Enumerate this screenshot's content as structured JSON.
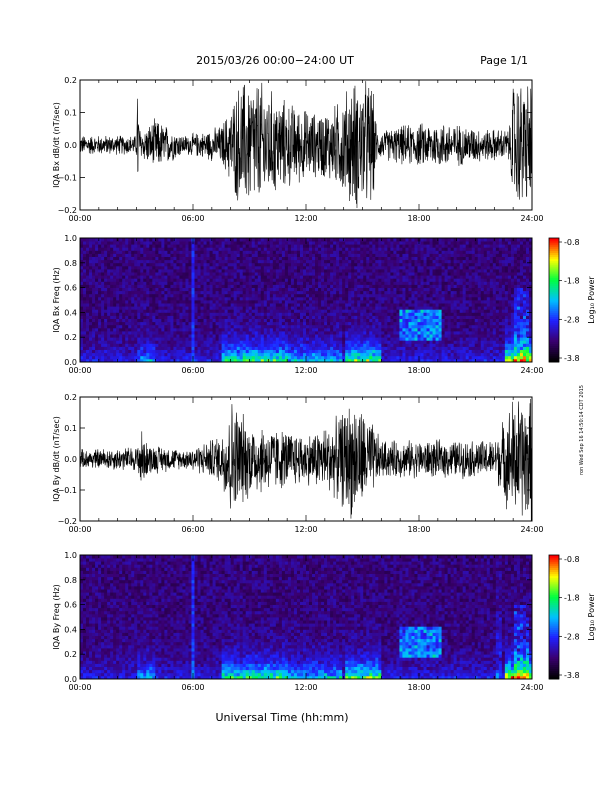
{
  "header": {
    "title": "2015/03/26  00:00−24:00 UT",
    "page": "Page 1/1"
  },
  "xaxis": {
    "label": "Universal Time (hh:mm)",
    "ticks": [
      "00:00",
      "06:00",
      "12:00",
      "18:00",
      "24:00"
    ],
    "range": [
      0,
      24
    ]
  },
  "side_stamp": "ron Wed Sep 16 14:50:14 CDT 2015",
  "colorbar": {
    "ticks": [
      "-0.8",
      "-1.8",
      "-2.8",
      "-3.8"
    ],
    "label": "Log₁₀ Power",
    "range": [
      -3.8,
      -0.8
    ]
  },
  "chart_data": [
    {
      "type": "line",
      "ylabel": "IQA Bx dB/dt (nT/sec)",
      "ylim": [
        -0.2,
        0.2
      ],
      "yticks": [
        "0.2",
        "0.1",
        "0.0",
        "−0.1",
        "−0.2"
      ],
      "series": [
        {
          "color": "#000000",
          "envelope": [
            [
              0,
              0.03
            ],
            [
              3.0,
              0.03
            ],
            [
              3.05,
              0.2
            ],
            [
              3.2,
              0.04
            ],
            [
              4.0,
              0.08
            ],
            [
              5.5,
              0.03
            ],
            [
              6.5,
              0.04
            ],
            [
              7.5,
              0.06
            ],
            [
              8.0,
              0.12
            ],
            [
              8.5,
              0.2
            ],
            [
              9.5,
              0.2
            ],
            [
              10.5,
              0.15
            ],
            [
              11.5,
              0.12
            ],
            [
              12.5,
              0.1
            ],
            [
              13.5,
              0.12
            ],
            [
              14.5,
              0.2
            ],
            [
              15.5,
              0.2
            ],
            [
              15.8,
              0.04
            ],
            [
              17.0,
              0.06
            ],
            [
              18.5,
              0.07
            ],
            [
              19.5,
              0.07
            ],
            [
              21.5,
              0.05
            ],
            [
              22.8,
              0.05
            ],
            [
              23.0,
              0.2
            ],
            [
              24.0,
              0.2
            ]
          ]
        }
      ]
    },
    {
      "type": "heatmap",
      "ylabel": "IQA Bx Freq (Hz)",
      "ylim": [
        0.0,
        1.0
      ],
      "yticks": [
        "1.0",
        "0.8",
        "0.6",
        "0.4",
        "0.2",
        "0.0"
      ],
      "colorscale": [
        "#000000",
        "#3a0070",
        "#2020ff",
        "#00c0ff",
        "#00ff40",
        "#ffff00",
        "#ff0000"
      ]
    },
    {
      "type": "line",
      "ylabel": "IQA By dB/dt (nT/sec)",
      "ylim": [
        -0.2,
        0.2
      ],
      "yticks": [
        "0.2",
        "0.1",
        "0.0",
        "−0.1",
        "−0.2"
      ],
      "series": [
        {
          "color": "#000000",
          "envelope": [
            [
              0,
              0.03
            ],
            [
              3.0,
              0.04
            ],
            [
              3.2,
              0.1
            ],
            [
              3.6,
              0.05
            ],
            [
              5.5,
              0.03
            ],
            [
              6.5,
              0.05
            ],
            [
              7.5,
              0.08
            ],
            [
              8.0,
              0.2
            ],
            [
              9.0,
              0.12
            ],
            [
              10.5,
              0.1
            ],
            [
              12.0,
              0.08
            ],
            [
              13.5,
              0.12
            ],
            [
              14.5,
              0.2
            ],
            [
              15.5,
              0.12
            ],
            [
              16.0,
              0.06
            ],
            [
              18.0,
              0.06
            ],
            [
              20.0,
              0.06
            ],
            [
              22.0,
              0.06
            ],
            [
              23.0,
              0.2
            ],
            [
              24.0,
              0.2
            ]
          ]
        }
      ]
    },
    {
      "type": "heatmap",
      "ylabel": "IQA By Freq (Hz)",
      "ylim": [
        0.0,
        1.0
      ],
      "yticks": [
        "1.0",
        "0.8",
        "0.6",
        "0.4",
        "0.2",
        "0.0"
      ],
      "colorscale": [
        "#000000",
        "#3a0070",
        "#2020ff",
        "#00c0ff",
        "#00ff40",
        "#ffff00",
        "#ff0000"
      ]
    }
  ]
}
